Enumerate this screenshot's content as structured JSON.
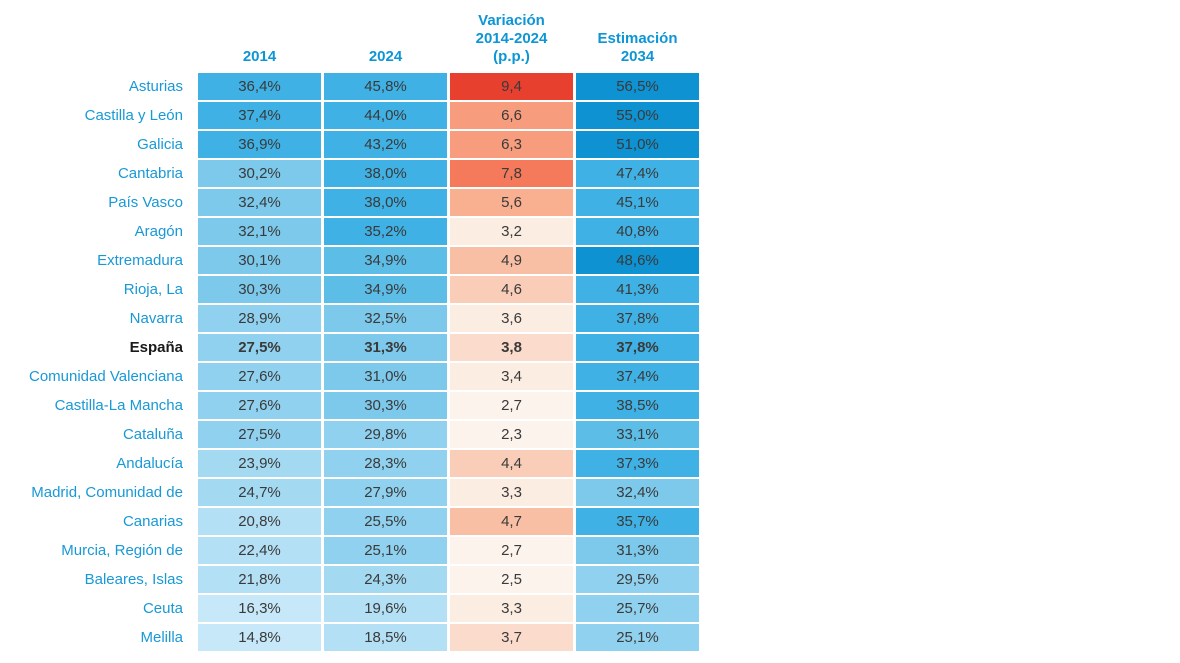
{
  "palette": {
    "header_text": "#0D96D5",
    "label_text": "#1899D6",
    "cell_text": "#3A3A3A",
    "espana_label_text": "#1A1A1A",
    "blues": {
      "b0": "#C6E8F8",
      "b1": "#B4E0F5",
      "b2": "#A3DAF2",
      "b3": "#8FD1EE",
      "b4": "#7CC9EB",
      "b5": "#5CBDE7",
      "b6": "#3FB1E4",
      "b7": "#0E92D2"
    },
    "reds": {
      "r0": "#FDF3ED",
      "r1": "#FCEDE3",
      "r2": "#FBDCCC",
      "r3": "#F9CDB8",
      "r4": "#F8BFA4",
      "r5": "#F9B091",
      "r6": "#F79C7C",
      "r7": "#F47A5B",
      "r8": "#E8402F"
    }
  },
  "table": {
    "columns": [
      "2014",
      "2024",
      "Variación\n2014-2024\n(p.p.)",
      "Estimación\n2034"
    ],
    "rows": [
      {
        "label": "Asturias",
        "bold": false,
        "cells": [
          {
            "text": "36,4%",
            "shade": "b6"
          },
          {
            "text": "45,8%",
            "shade": "b6"
          },
          {
            "text": "9,4",
            "shade": "r8"
          },
          {
            "text": "56,5%",
            "shade": "b7"
          }
        ]
      },
      {
        "label": "Castilla y León",
        "bold": false,
        "cells": [
          {
            "text": "37,4%",
            "shade": "b6"
          },
          {
            "text": "44,0%",
            "shade": "b6"
          },
          {
            "text": "6,6",
            "shade": "r6"
          },
          {
            "text": "55,0%",
            "shade": "b7"
          }
        ]
      },
      {
        "label": "Galicia",
        "bold": false,
        "cells": [
          {
            "text": "36,9%",
            "shade": "b6"
          },
          {
            "text": "43,2%",
            "shade": "b6"
          },
          {
            "text": "6,3",
            "shade": "r6"
          },
          {
            "text": "51,0%",
            "shade": "b7"
          }
        ]
      },
      {
        "label": "Cantabria",
        "bold": false,
        "cells": [
          {
            "text": "30,2%",
            "shade": "b4"
          },
          {
            "text": "38,0%",
            "shade": "b6"
          },
          {
            "text": "7,8",
            "shade": "r7"
          },
          {
            "text": "47,4%",
            "shade": "b6"
          }
        ]
      },
      {
        "label": "País Vasco",
        "bold": false,
        "cells": [
          {
            "text": "32,4%",
            "shade": "b4"
          },
          {
            "text": "38,0%",
            "shade": "b6"
          },
          {
            "text": "5,6",
            "shade": "r5"
          },
          {
            "text": "45,1%",
            "shade": "b6"
          }
        ]
      },
      {
        "label": "Aragón",
        "bold": false,
        "cells": [
          {
            "text": "32,1%",
            "shade": "b4"
          },
          {
            "text": "35,2%",
            "shade": "b6"
          },
          {
            "text": "3,2",
            "shade": "r1"
          },
          {
            "text": "40,8%",
            "shade": "b6"
          }
        ]
      },
      {
        "label": "Extremadura",
        "bold": false,
        "cells": [
          {
            "text": "30,1%",
            "shade": "b4"
          },
          {
            "text": "34,9%",
            "shade": "b5"
          },
          {
            "text": "4,9",
            "shade": "r4"
          },
          {
            "text": "48,6%",
            "shade": "b7"
          }
        ]
      },
      {
        "label": "Rioja, La",
        "bold": false,
        "cells": [
          {
            "text": "30,3%",
            "shade": "b4"
          },
          {
            "text": "34,9%",
            "shade": "b5"
          },
          {
            "text": "4,6",
            "shade": "r3"
          },
          {
            "text": "41,3%",
            "shade": "b6"
          }
        ]
      },
      {
        "label": "Navarra",
        "bold": false,
        "cells": [
          {
            "text": "28,9%",
            "shade": "b3"
          },
          {
            "text": "32,5%",
            "shade": "b4"
          },
          {
            "text": "3,6",
            "shade": "r1"
          },
          {
            "text": "37,8%",
            "shade": "b6"
          }
        ]
      },
      {
        "label": "España",
        "bold": true,
        "cells": [
          {
            "text": "27,5%",
            "shade": "b3"
          },
          {
            "text": "31,3%",
            "shade": "b4"
          },
          {
            "text": "3,8",
            "shade": "r2"
          },
          {
            "text": "37,8%",
            "shade": "b6"
          }
        ]
      },
      {
        "label": "Comunidad Valenciana",
        "bold": false,
        "cells": [
          {
            "text": "27,6%",
            "shade": "b3"
          },
          {
            "text": "31,0%",
            "shade": "b4"
          },
          {
            "text": "3,4",
            "shade": "r1"
          },
          {
            "text": "37,4%",
            "shade": "b6"
          }
        ]
      },
      {
        "label": "Castilla-La Mancha",
        "bold": false,
        "cells": [
          {
            "text": "27,6%",
            "shade": "b3"
          },
          {
            "text": "30,3%",
            "shade": "b4"
          },
          {
            "text": "2,7",
            "shade": "r0"
          },
          {
            "text": "38,5%",
            "shade": "b6"
          }
        ]
      },
      {
        "label": "Cataluña",
        "bold": false,
        "cells": [
          {
            "text": "27,5%",
            "shade": "b3"
          },
          {
            "text": "29,8%",
            "shade": "b3"
          },
          {
            "text": "2,3",
            "shade": "r0"
          },
          {
            "text": "33,1%",
            "shade": "b5"
          }
        ]
      },
      {
        "label": "Andalucía",
        "bold": false,
        "cells": [
          {
            "text": "23,9%",
            "shade": "b2"
          },
          {
            "text": "28,3%",
            "shade": "b3"
          },
          {
            "text": "4,4",
            "shade": "r3"
          },
          {
            "text": "37,3%",
            "shade": "b6"
          }
        ]
      },
      {
        "label": "Madrid, Comunidad de",
        "bold": false,
        "cells": [
          {
            "text": "24,7%",
            "shade": "b2"
          },
          {
            "text": "27,9%",
            "shade": "b3"
          },
          {
            "text": "3,3",
            "shade": "r1"
          },
          {
            "text": "32,4%",
            "shade": "b4"
          }
        ]
      },
      {
        "label": "Canarias",
        "bold": false,
        "cells": [
          {
            "text": "20,8%",
            "shade": "b1"
          },
          {
            "text": "25,5%",
            "shade": "b3"
          },
          {
            "text": "4,7",
            "shade": "r4"
          },
          {
            "text": "35,7%",
            "shade": "b6"
          }
        ]
      },
      {
        "label": "Murcia, Región de",
        "bold": false,
        "cells": [
          {
            "text": "22,4%",
            "shade": "b1"
          },
          {
            "text": "25,1%",
            "shade": "b3"
          },
          {
            "text": "2,7",
            "shade": "r0"
          },
          {
            "text": "31,3%",
            "shade": "b4"
          }
        ]
      },
      {
        "label": "Baleares, Islas",
        "bold": false,
        "cells": [
          {
            "text": "21,8%",
            "shade": "b1"
          },
          {
            "text": "24,3%",
            "shade": "b2"
          },
          {
            "text": "2,5",
            "shade": "r0"
          },
          {
            "text": "29,5%",
            "shade": "b3"
          }
        ]
      },
      {
        "label": "Ceuta",
        "bold": false,
        "cells": [
          {
            "text": "16,3%",
            "shade": "b0"
          },
          {
            "text": "19,6%",
            "shade": "b1"
          },
          {
            "text": "3,3",
            "shade": "r1"
          },
          {
            "text": "25,7%",
            "shade": "b3"
          }
        ]
      },
      {
        "label": "Melilla",
        "bold": false,
        "cells": [
          {
            "text": "14,8%",
            "shade": "b0"
          },
          {
            "text": "18,5%",
            "shade": "b1"
          },
          {
            "text": "3,7",
            "shade": "r2"
          },
          {
            "text": "25,1%",
            "shade": "b3"
          }
        ]
      }
    ]
  },
  "chart_data": {
    "type": "heatmap",
    "categories": [
      "Asturias",
      "Castilla y León",
      "Galicia",
      "Cantabria",
      "País Vasco",
      "Aragón",
      "Extremadura",
      "Rioja, La",
      "Navarra",
      "España",
      "Comunidad Valenciana",
      "Castilla-La Mancha",
      "Cataluña",
      "Andalucía",
      "Madrid, Comunidad de",
      "Canarias",
      "Murcia, Región de",
      "Baleares, Islas",
      "Ceuta",
      "Melilla"
    ],
    "series": [
      {
        "name": "2014",
        "unit": "%",
        "values": [
          36.4,
          37.4,
          36.9,
          30.2,
          32.4,
          32.1,
          30.1,
          30.3,
          28.9,
          27.5,
          27.6,
          27.6,
          27.5,
          23.9,
          24.7,
          20.8,
          22.4,
          21.8,
          16.3,
          14.8
        ]
      },
      {
        "name": "2024",
        "unit": "%",
        "values": [
          45.8,
          44.0,
          43.2,
          38.0,
          38.0,
          35.2,
          34.9,
          34.9,
          32.5,
          31.3,
          31.0,
          30.3,
          29.8,
          28.3,
          27.9,
          25.5,
          25.1,
          24.3,
          19.6,
          18.5
        ]
      },
      {
        "name": "Variación 2014-2024 (p.p.)",
        "unit": "p.p.",
        "values": [
          9.4,
          6.6,
          6.3,
          7.8,
          5.6,
          3.2,
          4.9,
          4.6,
          3.6,
          3.8,
          3.4,
          2.7,
          2.3,
          4.4,
          3.3,
          4.7,
          2.7,
          2.5,
          3.3,
          3.7
        ]
      },
      {
        "name": "Estimación 2034",
        "unit": "%",
        "values": [
          56.5,
          55.0,
          51.0,
          47.4,
          45.1,
          40.8,
          48.6,
          41.3,
          37.8,
          37.8,
          37.4,
          38.5,
          33.1,
          37.3,
          32.4,
          35.7,
          31.3,
          29.5,
          25.7,
          25.1
        ]
      }
    ],
    "highlighted_row": "España",
    "legend_position": "none",
    "color_scales": {
      "percent_columns": "light blue (low) to dark blue (high)",
      "variation_column": "near white (low) to strong red (high)"
    }
  }
}
